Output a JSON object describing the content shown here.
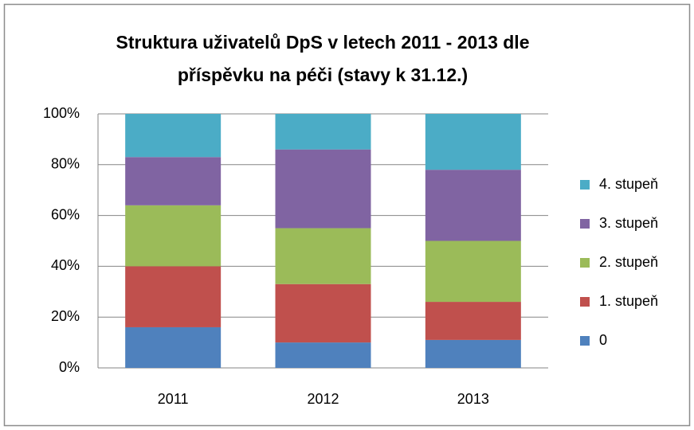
{
  "chart_data": {
    "type": "stacked_bar",
    "title": [
      "Struktura uživatelů DpS v letech 2011 - 2013 dle",
      "příspěvku na péči  (stavy k 31.12.)"
    ],
    "categories": [
      "2011",
      "2012",
      "2013"
    ],
    "series": [
      {
        "name": "0",
        "color": "#4f81bd",
        "values": [
          16,
          10,
          11
        ]
      },
      {
        "name": "1. stupeň",
        "color": "#c0504d",
        "values": [
          24,
          23,
          15
        ]
      },
      {
        "name": "2. stupeň",
        "color": "#9bbb59",
        "values": [
          24,
          22,
          24
        ]
      },
      {
        "name": "3. stupeň",
        "color": "#8064a2",
        "values": [
          19,
          31,
          28
        ]
      },
      {
        "name": "4. stupeň",
        "color": "#4bacc6",
        "values": [
          17,
          14,
          22
        ]
      }
    ],
    "ylim": [
      0,
      100
    ],
    "yticks": [
      {
        "value": 0,
        "label": "0%"
      },
      {
        "value": 20,
        "label": "20%"
      },
      {
        "value": 40,
        "label": "40%"
      },
      {
        "value": 60,
        "label": "60%"
      },
      {
        "value": 80,
        "label": "80%"
      },
      {
        "value": 100,
        "label": "100%"
      }
    ],
    "grid": true,
    "legend": "right"
  }
}
